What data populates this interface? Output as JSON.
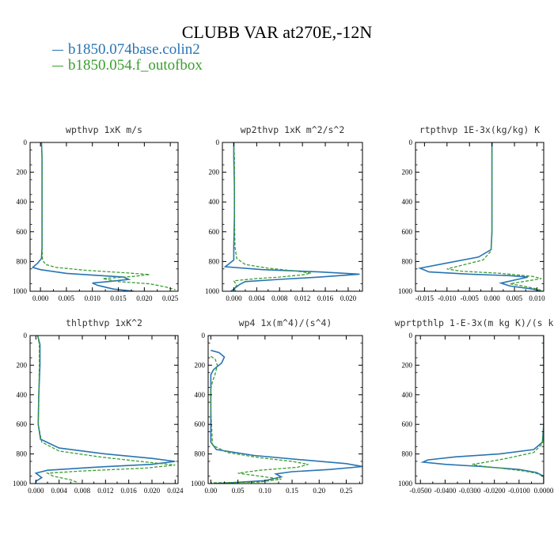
{
  "figure_title": "CLUBB VAR at270E,-12N",
  "legend": [
    {
      "name": "b1850.074base.colin2",
      "color": "#2874b2"
    },
    {
      "name": "b1850.054.f_outofbox",
      "color": "#3a9e2e"
    }
  ],
  "chart_data": [
    {
      "type": "line",
      "title": "wpthvp  1xK m/s",
      "xlim": [
        -0.002,
        0.0265
      ],
      "ylim": [
        1000,
        0
      ],
      "xticks": [
        "0.000",
        "0.005",
        "0.010",
        "0.015",
        "0.020",
        "0.025"
      ],
      "xtick_values": [
        0,
        0.005,
        0.01,
        0.015,
        0.02,
        0.025
      ],
      "yticks": [
        "0",
        "200",
        "400",
        "600",
        "800",
        "1000"
      ],
      "ytick_values": [
        0,
        200,
        400,
        600,
        800,
        1000
      ],
      "series": [
        {
          "name": "b1850.074base.colin2",
          "points": [
            [
              0.0002,
              0
            ],
            [
              0.0003,
              100
            ],
            [
              0.0003,
              300
            ],
            [
              0.0003,
              500
            ],
            [
              0.0003,
              700
            ],
            [
              0.0002,
              780
            ],
            [
              -0.0005,
              810
            ],
            [
              -0.0015,
              840
            ],
            [
              0.0,
              855
            ],
            [
              0.005,
              880
            ],
            [
              0.016,
              905
            ],
            [
              0.017,
              920
            ],
            [
              0.013,
              935
            ],
            [
              0.01,
              945
            ],
            [
              0.011,
              960
            ],
            [
              0.014,
              985
            ],
            [
              0.018,
              1000
            ]
          ]
        },
        {
          "name": "b1850.054.f_outofbox",
          "points": [
            [
              0.0002,
              0
            ],
            [
              0.0003,
              100
            ],
            [
              0.0003,
              300
            ],
            [
              0.0003,
              500
            ],
            [
              0.0003,
              700
            ],
            [
              0.0004,
              790
            ],
            [
              0.001,
              820
            ],
            [
              0.003,
              840
            ],
            [
              0.009,
              860
            ],
            [
              0.016,
              875
            ],
            [
              0.021,
              888
            ],
            [
              0.018,
              900
            ],
            [
              0.012,
              915
            ],
            [
              0.015,
              935
            ],
            [
              0.021,
              950
            ],
            [
              0.024,
              970
            ],
            [
              0.026,
              990
            ]
          ]
        }
      ]
    },
    {
      "type": "line",
      "title": "wp2thvp  1xK m^2/s^2",
      "xlim": [
        -0.002,
        0.0225
      ],
      "ylim": [
        1000,
        0
      ],
      "xticks": [
        "0.000",
        "0.004",
        "0.008",
        "0.012",
        "0.016",
        "0.020"
      ],
      "xtick_values": [
        0,
        0.004,
        0.008,
        0.012,
        0.016,
        0.02
      ],
      "yticks": [
        "0",
        "200",
        "400",
        "600",
        "800",
        "1000"
      ],
      "ytick_values": [
        0,
        200,
        400,
        600,
        800,
        1000
      ],
      "series": [
        {
          "name": "b1850.074base.colin2",
          "points": [
            [
              0.0,
              0
            ],
            [
              0.0,
              100
            ],
            [
              0.0001,
              300
            ],
            [
              0.0001,
              500
            ],
            [
              0.0,
              700
            ],
            [
              0.0,
              790
            ],
            [
              -0.001,
              820
            ],
            [
              -0.0015,
              835
            ],
            [
              0.005,
              855
            ],
            [
              0.015,
              870
            ],
            [
              0.022,
              885
            ],
            [
              0.015,
              905
            ],
            [
              0.008,
              920
            ],
            [
              0.002,
              935
            ],
            [
              0.001,
              955
            ],
            [
              0.0,
              985
            ],
            [
              -0.0005,
              1000
            ]
          ]
        },
        {
          "name": "b1850.054.f_outofbox",
          "points": [
            [
              0.0,
              0
            ],
            [
              0.0001,
              100
            ],
            [
              0.0001,
              300
            ],
            [
              0.0001,
              500
            ],
            [
              0.0002,
              700
            ],
            [
              0.0005,
              780
            ],
            [
              0.002,
              820
            ],
            [
              0.006,
              845
            ],
            [
              0.011,
              865
            ],
            [
              0.0135,
              878
            ],
            [
              0.012,
              890
            ],
            [
              0.008,
              905
            ],
            [
              0.004,
              915
            ],
            [
              0.0,
              930
            ],
            [
              0.0005,
              960
            ],
            [
              0.0,
              985
            ],
            [
              0.0005,
              1000
            ]
          ]
        }
      ]
    },
    {
      "type": "line",
      "title": "rtpthvp  1E-3x(kg/kg) K",
      "xlim": [
        -0.017,
        0.0115
      ],
      "ylim": [
        1000,
        0
      ],
      "xticks": [
        "-0.015",
        "-0.010",
        "-0.005",
        "0.000",
        "0.005",
        "0.010"
      ],
      "xtick_values": [
        -0.015,
        -0.01,
        -0.005,
        0,
        0.005,
        0.01
      ],
      "yticks": [
        "0",
        "200",
        "400",
        "600",
        "800",
        "1000"
      ],
      "ytick_values": [
        0,
        200,
        400,
        600,
        800,
        1000
      ],
      "series": [
        {
          "name": "b1850.074base.colin2",
          "points": [
            [
              0.0,
              0
            ],
            [
              0.0,
              300
            ],
            [
              0.0,
              600
            ],
            [
              -0.0002,
              720
            ],
            [
              -0.003,
              770
            ],
            [
              -0.01,
              810
            ],
            [
              -0.016,
              845
            ],
            [
              -0.014,
              870
            ],
            [
              -0.005,
              885
            ],
            [
              0.004,
              895
            ],
            [
              0.008,
              905
            ],
            [
              0.005,
              925
            ],
            [
              0.002,
              945
            ],
            [
              0.004,
              965
            ],
            [
              0.009,
              985
            ],
            [
              0.011,
              1000
            ]
          ]
        },
        {
          "name": "b1850.054.f_outofbox",
          "points": [
            [
              0.0,
              0
            ],
            [
              0.0,
              300
            ],
            [
              0.0,
              600
            ],
            [
              -0.0002,
              730
            ],
            [
              -0.002,
              790
            ],
            [
              -0.008,
              835
            ],
            [
              -0.01,
              850
            ],
            [
              -0.007,
              865
            ],
            [
              0.002,
              880
            ],
            [
              0.009,
              900
            ],
            [
              0.011,
              915
            ],
            [
              0.008,
              930
            ],
            [
              0.004,
              950
            ],
            [
              0.007,
              965
            ],
            [
              0.01,
              985
            ],
            [
              0.0115,
              1000
            ]
          ]
        }
      ]
    },
    {
      "type": "line",
      "title": "thlpthvp  1xK^2",
      "xlim": [
        -0.001,
        0.0245
      ],
      "ylim": [
        1000,
        0
      ],
      "xticks": [
        "0.000",
        "0.004",
        "0.008",
        "0.012",
        "0.016",
        "0.020",
        "0.024"
      ],
      "xtick_values": [
        0,
        0.004,
        0.008,
        0.012,
        0.016,
        0.02,
        0.024
      ],
      "yticks": [
        "0",
        "200",
        "400",
        "600",
        "800",
        "1000"
      ],
      "ytick_values": [
        0,
        200,
        400,
        600,
        800,
        1000
      ],
      "series": [
        {
          "name": "b1850.074base.colin2",
          "points": [
            [
              0.0003,
              0
            ],
            [
              0.0007,
              60
            ],
            [
              0.0007,
              200
            ],
            [
              0.0005,
              400
            ],
            [
              0.0004,
              600
            ],
            [
              0.0008,
              700
            ],
            [
              0.004,
              760
            ],
            [
              0.012,
              800
            ],
            [
              0.02,
              830
            ],
            [
              0.024,
              850
            ],
            [
              0.02,
              870
            ],
            [
              0.01,
              890
            ],
            [
              0.002,
              910
            ],
            [
              0.0,
              930
            ],
            [
              0.001,
              960
            ],
            [
              0.0,
              985
            ],
            [
              0.0,
              1000
            ]
          ]
        },
        {
          "name": "b1850.054.f_outofbox",
          "points": [
            [
              0.0003,
              0
            ],
            [
              0.0006,
              60
            ],
            [
              0.0006,
              200
            ],
            [
              0.0005,
              400
            ],
            [
              0.0004,
              600
            ],
            [
              0.001,
              720
            ],
            [
              0.004,
              780
            ],
            [
              0.011,
              820
            ],
            [
              0.018,
              850
            ],
            [
              0.024,
              875
            ],
            [
              0.019,
              895
            ],
            [
              0.008,
              915
            ],
            [
              0.002,
              930
            ],
            [
              0.003,
              950
            ],
            [
              0.006,
              975
            ],
            [
              0.007,
              990
            ]
          ]
        }
      ]
    },
    {
      "type": "line",
      "title": "wp4  1x(m^4)/(s^4)",
      "xlim": [
        -0.005,
        0.28
      ],
      "ylim": [
        1000,
        0
      ],
      "xticks": [
        "0.00",
        "0.05",
        "0.10",
        "0.15",
        "0.20",
        "0.25"
      ],
      "xtick_values": [
        0,
        0.05,
        0.1,
        0.15,
        0.2,
        0.25
      ],
      "yticks": [
        "0",
        "200",
        "400",
        "600",
        "800",
        "1000"
      ],
      "ytick_values": [
        0,
        200,
        400,
        600,
        800,
        1000
      ],
      "series": [
        {
          "name": "b1850.074base.colin2",
          "points": [
            [
              0.0,
              100
            ],
            [
              0.015,
              115
            ],
            [
              0.025,
              145
            ],
            [
              0.02,
              185
            ],
            [
              0.005,
              230
            ],
            [
              0.0,
              265
            ],
            [
              0.0,
              500
            ],
            [
              0.0,
              720
            ],
            [
              0.01,
              770
            ],
            [
              0.08,
              810
            ],
            [
              0.17,
              840
            ],
            [
              0.25,
              865
            ],
            [
              0.28,
              885
            ],
            [
              0.22,
              905
            ],
            [
              0.15,
              920
            ],
            [
              0.12,
              935
            ],
            [
              0.13,
              955
            ],
            [
              0.1,
              980
            ],
            [
              0.01,
              1000
            ]
          ]
        },
        {
          "name": "b1850.054.f_outofbox",
          "points": [
            [
              0.0,
              140
            ],
            [
              0.008,
              160
            ],
            [
              0.012,
              200
            ],
            [
              0.008,
              260
            ],
            [
              0.003,
              310
            ],
            [
              0.0,
              360
            ],
            [
              0.0,
              500
            ],
            [
              0.003,
              740
            ],
            [
              0.03,
              790
            ],
            [
              0.09,
              825
            ],
            [
              0.15,
              850
            ],
            [
              0.18,
              870
            ],
            [
              0.16,
              890
            ],
            [
              0.09,
              910
            ],
            [
              0.05,
              930
            ],
            [
              0.09,
              950
            ],
            [
              0.13,
              970
            ],
            [
              0.09,
              990
            ],
            [
              0.0,
              995
            ]
          ]
        }
      ]
    },
    {
      "type": "line",
      "title": "wprtpthlp  1-E-3x(m kg K)/(s kg)",
      "xlim": [
        -0.052,
        0.0
      ],
      "ylim": [
        1000,
        0
      ],
      "xticks": [
        "-0.0500",
        "-0.0400",
        "-0.0300",
        "-0.0200",
        "-0.0100",
        "0.0000"
      ],
      "xtick_values": [
        -0.05,
        -0.04,
        -0.03,
        -0.02,
        -0.01,
        0
      ],
      "yticks": [
        "0",
        "200",
        "400",
        "600",
        "800",
        "1000"
      ],
      "ytick_values": [
        0,
        200,
        400,
        600,
        800,
        1000
      ],
      "series": [
        {
          "name": "b1850.074base.colin2",
          "points": [
            [
              0.0,
              0
            ],
            [
              0.0,
              300
            ],
            [
              0.0,
              600
            ],
            [
              -0.0005,
              720
            ],
            [
              -0.004,
              770
            ],
            [
              -0.018,
              800
            ],
            [
              -0.036,
              820
            ],
            [
              -0.047,
              840
            ],
            [
              -0.049,
              855
            ],
            [
              -0.04,
              870
            ],
            [
              -0.025,
              885
            ],
            [
              -0.01,
              905
            ],
            [
              -0.003,
              925
            ],
            [
              0.0,
              950
            ],
            [
              0.0,
              1000
            ]
          ]
        },
        {
          "name": "b1850.054.f_outofbox",
          "points": [
            [
              0.0,
              0
            ],
            [
              0.0,
              300
            ],
            [
              0.0,
              600
            ],
            [
              -0.0005,
              730
            ],
            [
              -0.004,
              790
            ],
            [
              -0.015,
              830
            ],
            [
              -0.025,
              860
            ],
            [
              -0.029,
              870
            ],
            [
              -0.026,
              880
            ],
            [
              -0.018,
              895
            ],
            [
              -0.008,
              915
            ],
            [
              -0.002,
              935
            ],
            [
              0.0,
              960
            ],
            [
              0.0,
              1000
            ]
          ]
        }
      ]
    }
  ]
}
